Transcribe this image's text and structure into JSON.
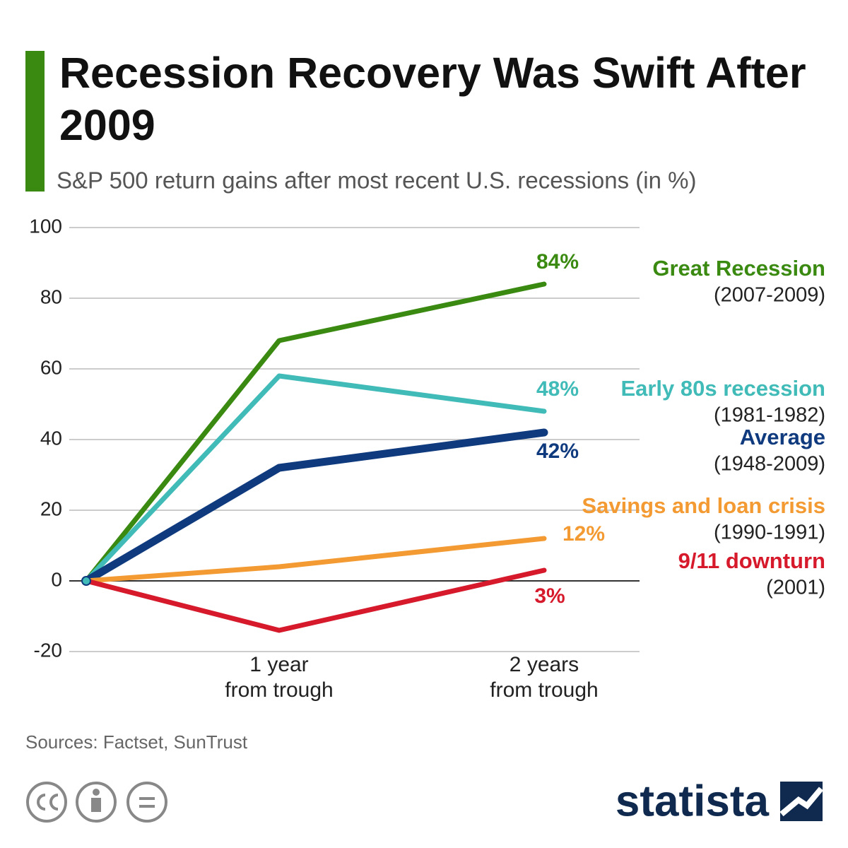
{
  "chart_data": {
    "type": "line",
    "title": "Recession Recovery Was Swift After 2009",
    "subtitle": "S&P 500 return gains after most recent U.S. recessions (in %)",
    "source": "Sources: Factset, SunTrust",
    "brand": "statista",
    "categories": [
      null,
      [
        "1 year",
        "from trough"
      ],
      [
        "2 years",
        "from trough"
      ]
    ],
    "ylim": [
      -20,
      100
    ],
    "yticks": [
      -20,
      0,
      20,
      40,
      60,
      80,
      100
    ],
    "grid": true,
    "series": [
      {
        "name": "Great Recession",
        "period": "(2007-2009)",
        "color": "#3a8a11",
        "values": [
          0,
          68,
          84
        ],
        "value_labels": [
          null,
          null,
          "84%"
        ]
      },
      {
        "name": "Early 80s recession",
        "period": "(1981-1982)",
        "color": "#40bbb8",
        "values": [
          0,
          58,
          48
        ],
        "value_labels": [
          null,
          null,
          "48%"
        ]
      },
      {
        "name": "Average",
        "period": "(1948-2009)",
        "color": "#0f3a7e",
        "values": [
          0,
          32,
          42
        ],
        "value_labels": [
          null,
          null,
          "42%"
        ]
      },
      {
        "name": "Savings and loan crisis",
        "period": "(1990-1991)",
        "color": "#f39a32",
        "values": [
          0,
          4,
          12
        ],
        "value_labels": [
          null,
          null,
          "12%"
        ]
      },
      {
        "name": "9/11 downturn",
        "period": "(2001)",
        "color": "#d61a2c",
        "values": [
          0,
          -14,
          3
        ],
        "value_labels": [
          null,
          null,
          "3%"
        ]
      }
    ]
  }
}
